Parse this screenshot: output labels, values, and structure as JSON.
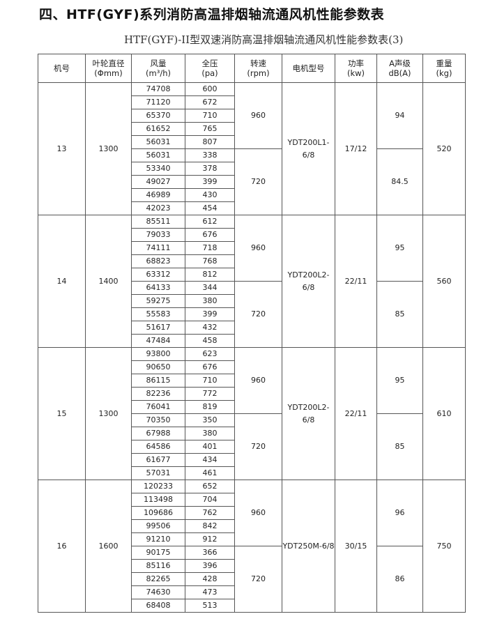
{
  "title": "四、HTF(GYF)系列消防高温排烟轴流通风机性能参数表",
  "subtitle": "HTF(GYF)-II型双速消防高温排烟轴流通风机性能参数表(3)",
  "headers": [
    {
      "l1": "机号",
      "l2": ""
    },
    {
      "l1": "叶轮直径",
      "l2": "(Φmm)"
    },
    {
      "l1": "风量",
      "l2": "(m³/h)"
    },
    {
      "l1": "全压",
      "l2": "(pa)"
    },
    {
      "l1": "转速",
      "l2": "(rpm)"
    },
    {
      "l1": "电机型号",
      "l2": ""
    },
    {
      "l1": "功率",
      "l2": "(kw)"
    },
    {
      "l1": "A声级",
      "l2": "dB(A)"
    },
    {
      "l1": "重量",
      "l2": "(kg)"
    }
  ],
  "groups": [
    {
      "model": "13",
      "impeller": "1300",
      "motor": "YDT200L1-6/8",
      "power": "17/12",
      "weight": "520",
      "speeds": [
        {
          "rpm": "960",
          "noise": "94",
          "rows": [
            [
              "74708",
              "600"
            ],
            [
              "71120",
              "672"
            ],
            [
              "65370",
              "710"
            ],
            [
              "61652",
              "765"
            ],
            [
              "56031",
              "807"
            ]
          ]
        },
        {
          "rpm": "720",
          "noise": "84.5",
          "rows": [
            [
              "56031",
              "338"
            ],
            [
              "53340",
              "378"
            ],
            [
              "49027",
              "399"
            ],
            [
              "46989",
              "430"
            ],
            [
              "42023",
              "454"
            ]
          ]
        }
      ]
    },
    {
      "model": "14",
      "impeller": "1400",
      "motor": "YDT200L2-6/8",
      "power": "22/11",
      "weight": "560",
      "speeds": [
        {
          "rpm": "960",
          "noise": "95",
          "rows": [
            [
              "85511",
              "612"
            ],
            [
              "79033",
              "676"
            ],
            [
              "74111",
              "718"
            ],
            [
              "68823",
              "768"
            ],
            [
              "63312",
              "812"
            ]
          ]
        },
        {
          "rpm": "720",
          "noise": "85",
          "rows": [
            [
              "64133",
              "344"
            ],
            [
              "59275",
              "380"
            ],
            [
              "55583",
              "399"
            ],
            [
              "51617",
              "432"
            ],
            [
              "47484",
              "458"
            ]
          ]
        }
      ]
    },
    {
      "model": "15",
      "impeller": "1300",
      "motor": "YDT200L2-6/8",
      "power": "22/11",
      "weight": "610",
      "speeds": [
        {
          "rpm": "960",
          "noise": "95",
          "rows": [
            [
              "93800",
              "623"
            ],
            [
              "90650",
              "676"
            ],
            [
              "86115",
              "710"
            ],
            [
              "82236",
              "772"
            ],
            [
              "76041",
              "819"
            ]
          ]
        },
        {
          "rpm": "720",
          "noise": "85",
          "rows": [
            [
              "70350",
              "350"
            ],
            [
              "67988",
              "380"
            ],
            [
              "64586",
              "401"
            ],
            [
              "61677",
              "434"
            ],
            [
              "57031",
              "461"
            ]
          ]
        }
      ]
    },
    {
      "model": "16",
      "impeller": "1600",
      "motor": "YDT250M-6/8",
      "power": "30/15",
      "weight": "750",
      "speeds": [
        {
          "rpm": "960",
          "noise": "96",
          "rows": [
            [
              "120233",
              "652"
            ],
            [
              "113498",
              "704"
            ],
            [
              "109686",
              "762"
            ],
            [
              "99506",
              "842"
            ],
            [
              "91210",
              "912"
            ]
          ]
        },
        {
          "rpm": "720",
          "noise": "86",
          "rows": [
            [
              "90175",
              "366"
            ],
            [
              "85116",
              "396"
            ],
            [
              "82265",
              "428"
            ],
            [
              "74630",
              "473"
            ],
            [
              "68408",
              "513"
            ]
          ]
        }
      ]
    }
  ]
}
